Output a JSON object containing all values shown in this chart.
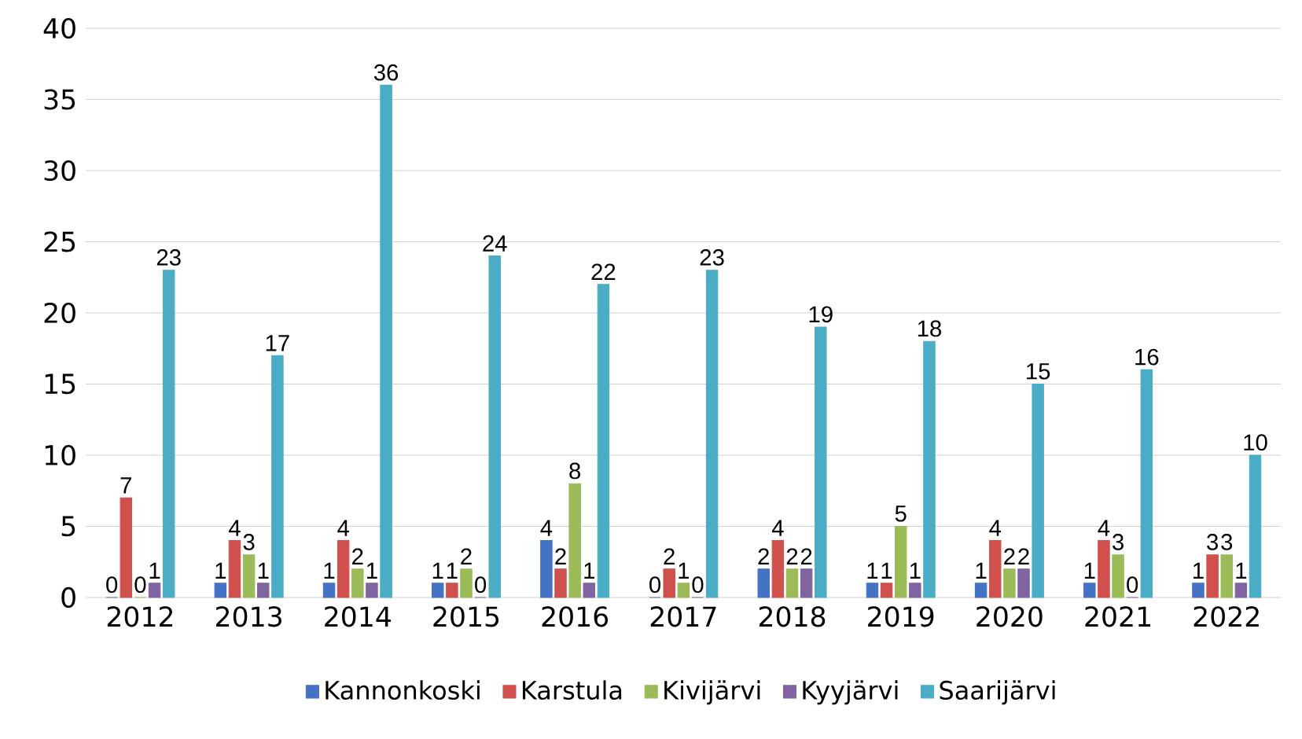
{
  "chart_data": {
    "type": "bar",
    "categories": [
      "2012",
      "2013",
      "2014",
      "2015",
      "2016",
      "2017",
      "2018",
      "2019",
      "2020",
      "2021",
      "2022"
    ],
    "series": [
      {
        "name": "Kannonkoski",
        "color": "#4472c4",
        "values": [
          0,
          1,
          1,
          1,
          4,
          0,
          2,
          1,
          1,
          1,
          1
        ]
      },
      {
        "name": "Karstula",
        "color": "#d0504d",
        "values": [
          7,
          4,
          4,
          1,
          2,
          2,
          4,
          1,
          4,
          4,
          3
        ]
      },
      {
        "name": "Kivijärvi",
        "color": "#9bbb59",
        "values": [
          0,
          3,
          2,
          2,
          8,
          1,
          2,
          5,
          2,
          3,
          3
        ]
      },
      {
        "name": "Kyyjärvi",
        "color": "#8064a2",
        "values": [
          1,
          1,
          1,
          0,
          1,
          0,
          2,
          1,
          2,
          0,
          1
        ]
      },
      {
        "name": "Saarijärvi",
        "color": "#4bacc6",
        "values": [
          23,
          17,
          36,
          24,
          22,
          23,
          19,
          18,
          15,
          16,
          10
        ]
      }
    ],
    "ylim": [
      0,
      40
    ],
    "yticks": [
      0,
      5,
      10,
      15,
      20,
      25,
      30,
      35,
      40
    ],
    "grid": "y",
    "legend": "bottom",
    "data_labels": true
  }
}
